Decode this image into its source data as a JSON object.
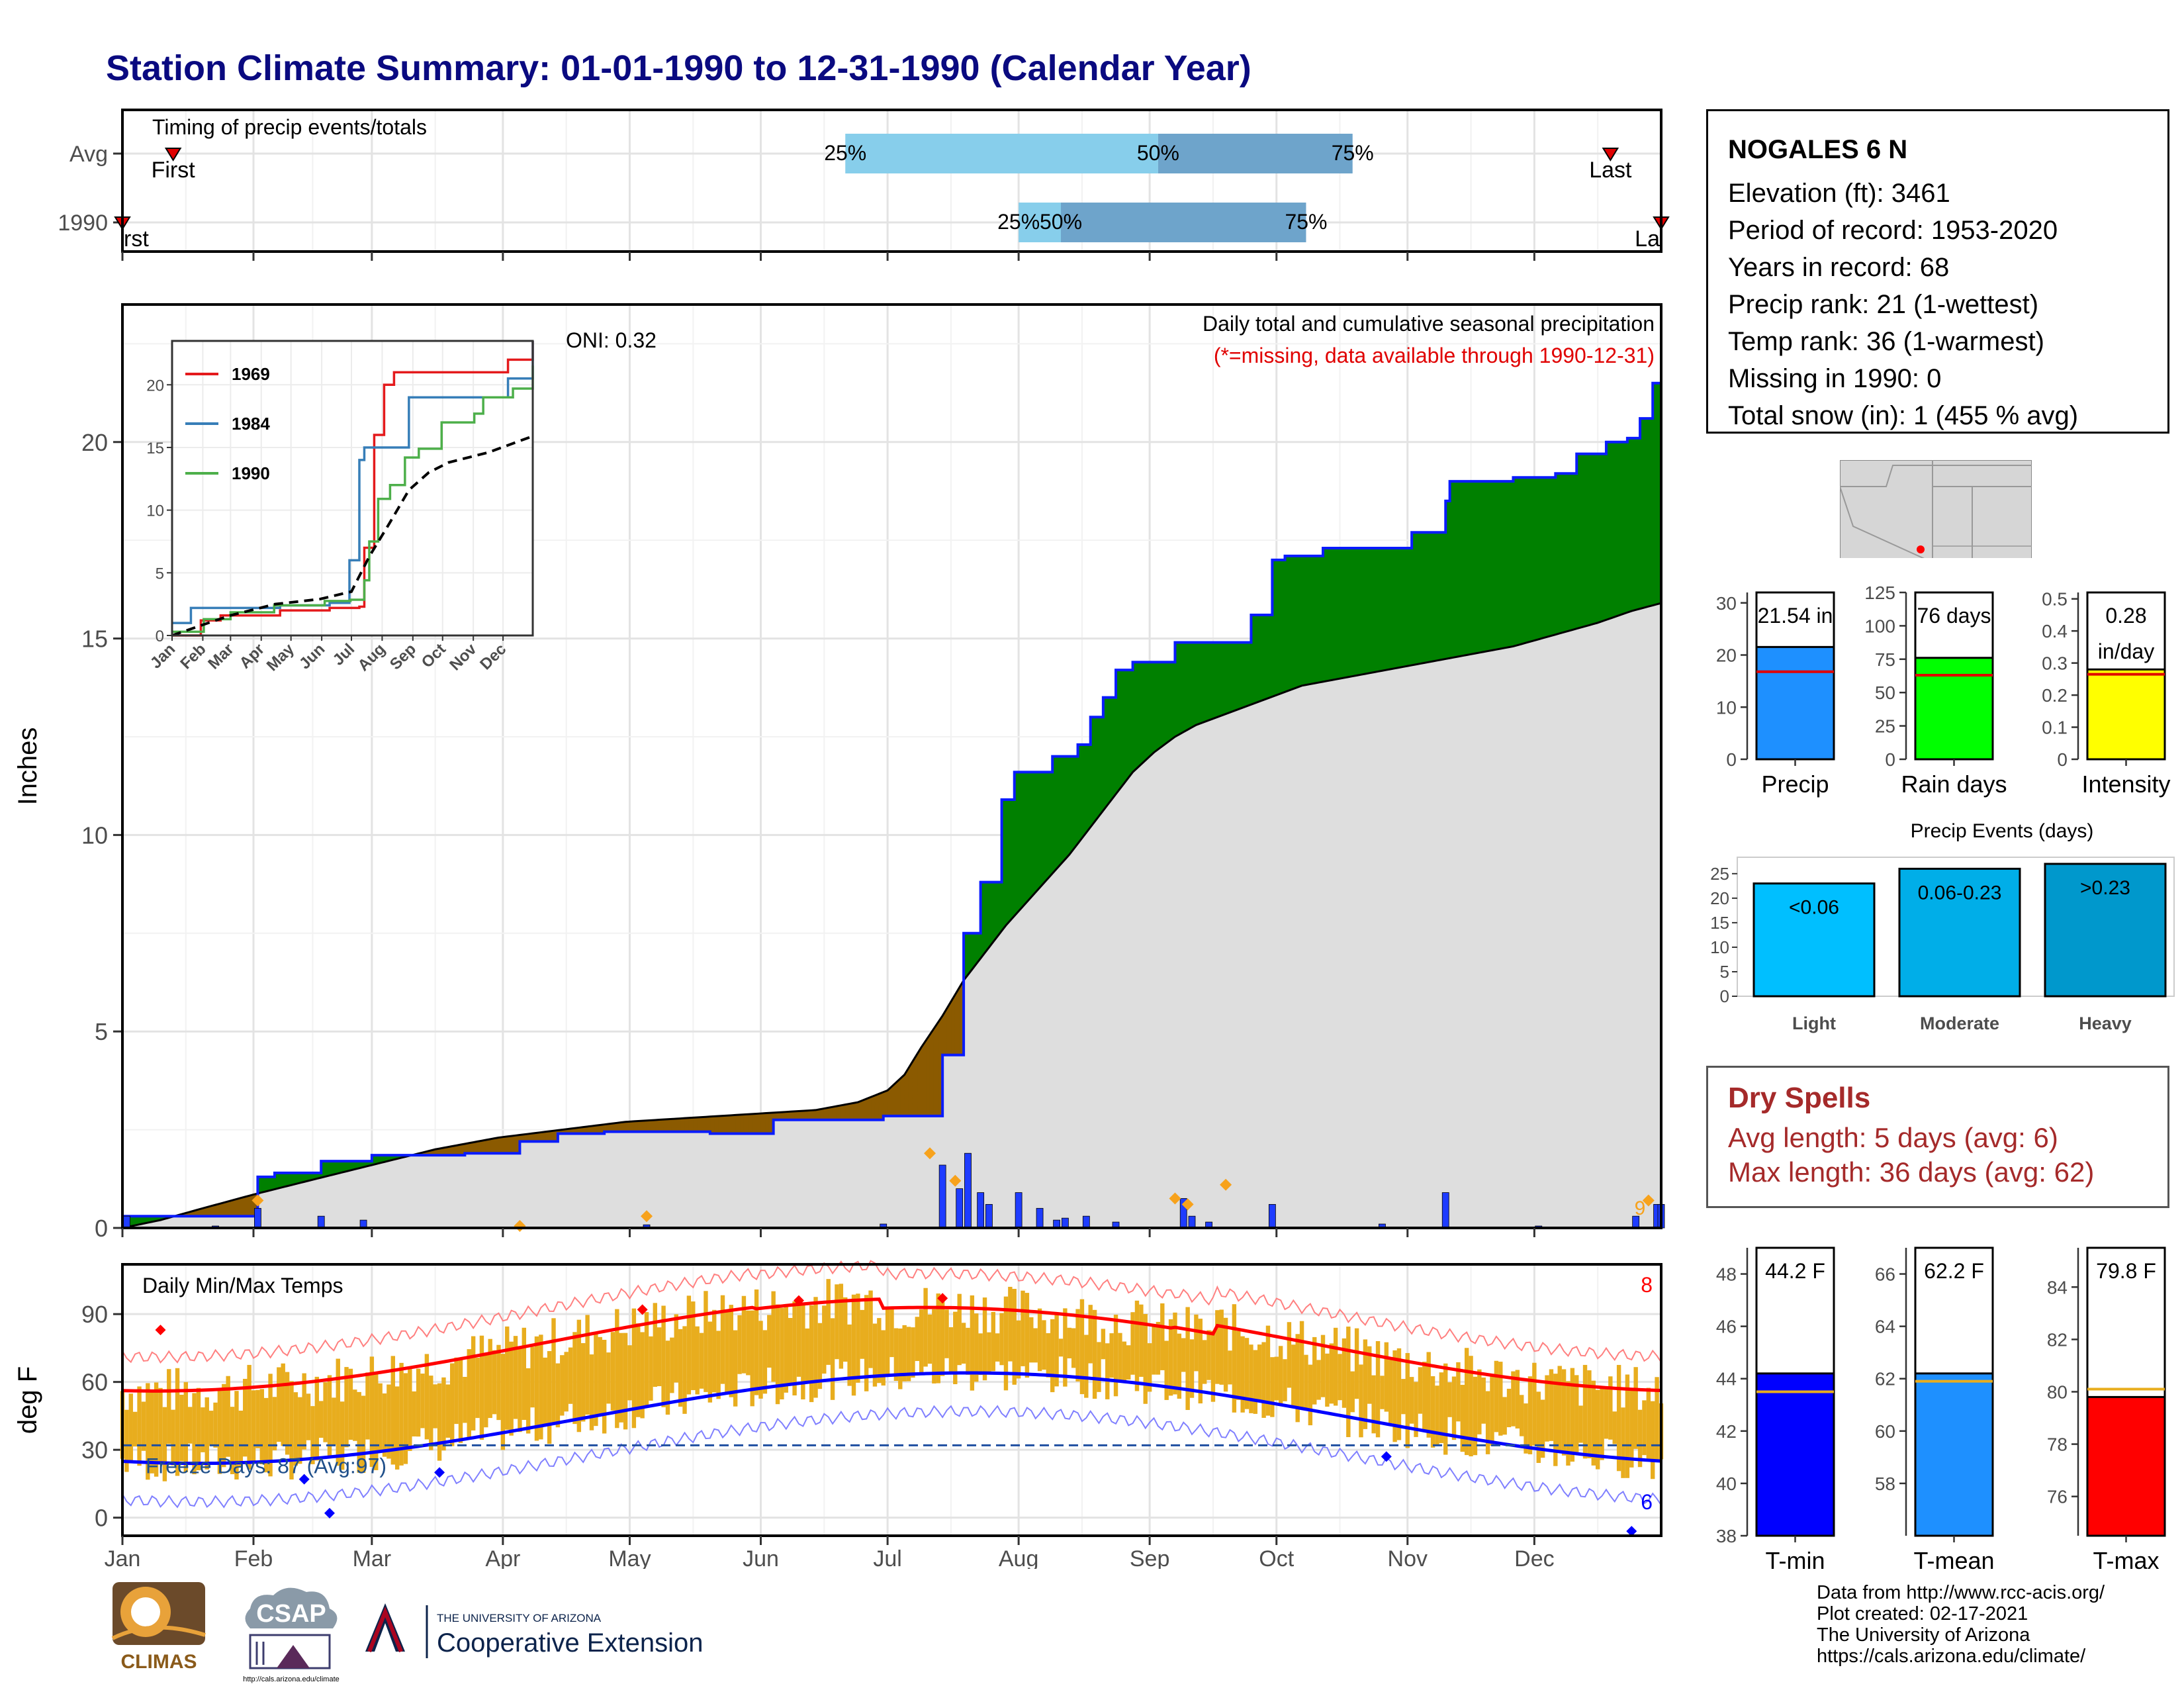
{
  "title": "Station Climate Summary: 01-01-1990 to 12-31-1990 (Calendar Year)",
  "station": {
    "name": "NOGALES 6 N",
    "lines": [
      "Elevation (ft): 3461",
      "Period of record: 1953-2020",
      "Years in record: 68",
      "Precip rank: 21 (1-wettest)",
      "Temp rank: 36 (1-warmest)",
      "Missing in 1990: 0",
      "Total snow (in): 1 (455 % avg)"
    ]
  },
  "months": [
    "Jan",
    "Feb",
    "Mar",
    "Apr",
    "May",
    "Jun",
    "Jul",
    "Aug",
    "Sep",
    "Oct",
    "Nov",
    "Dec"
  ],
  "timing": {
    "label": "Timing of precip events/totals",
    "rows": [
      "Avg",
      "1990"
    ],
    "first_label": "First",
    "last_label": "Last",
    "first_label_cut": "rst",
    "last_label_cut": "La",
    "pct_labels": [
      "25%",
      "50%",
      "75%"
    ],
    "avg": {
      "first": 13,
      "p25": 172,
      "p50": 246,
      "p75": 292,
      "last": 353
    },
    "y1990": {
      "first": 1,
      "p25": 213,
      "p50": 223,
      "p75": 281,
      "last": 365
    }
  },
  "colors": {
    "wet": "#008000",
    "dry": "#8b5a00",
    "avg_fill": "#dedede",
    "precip_bar": "#1e3cff",
    "tmax": "#ff0000",
    "tmin": "#0000ff",
    "temp_bar": "#e8ad1e"
  },
  "chart_data": [
    {
      "type": "area",
      "title": "Daily total and cumulative seasonal precipitation",
      "subtitle": "(*=missing, data available through 1990-12-31)",
      "ylabel": "Inches",
      "ylim": [
        0,
        23.5
      ],
      "yticks": [
        0,
        5,
        10,
        15,
        20
      ],
      "oni_label": "ONI: 0.32",
      "high_marker_count": "9",
      "cum_1990": [
        [
          1,
          0.3
        ],
        [
          32,
          0.3
        ],
        [
          33,
          1.3
        ],
        [
          37,
          1.4
        ],
        [
          48,
          1.7
        ],
        [
          60,
          1.85
        ],
        [
          82,
          1.9
        ],
        [
          95,
          2.2
        ],
        [
          104,
          2.4
        ],
        [
          110,
          2.4
        ],
        [
          115,
          2.45
        ],
        [
          140,
          2.4
        ],
        [
          155,
          2.75
        ],
        [
          181,
          2.85
        ],
        [
          195,
          4.4
        ],
        [
          200,
          7.5
        ],
        [
          204,
          8.8
        ],
        [
          209,
          10.9
        ],
        [
          212,
          11.6
        ],
        [
          221,
          12.0
        ],
        [
          227,
          12.3
        ],
        [
          230,
          13.0
        ],
        [
          233,
          13.5
        ],
        [
          236,
          14.2
        ],
        [
          240,
          14.4
        ],
        [
          250,
          14.9
        ],
        [
          268,
          15.6
        ],
        [
          273,
          17.0
        ],
        [
          276,
          17.1
        ],
        [
          285,
          17.3
        ],
        [
          306,
          17.7
        ],
        [
          314,
          18.5
        ],
        [
          315,
          19.0
        ],
        [
          330,
          19.1
        ],
        [
          340,
          19.2
        ],
        [
          345,
          19.7
        ],
        [
          352,
          20.0
        ],
        [
          357,
          20.1
        ],
        [
          360,
          20.6
        ],
        [
          363,
          21.5
        ],
        [
          365,
          21.54
        ]
      ],
      "cum_avg": [
        [
          1,
          0
        ],
        [
          10,
          0.2
        ],
        [
          20,
          0.5
        ],
        [
          32,
          0.85
        ],
        [
          45,
          1.2
        ],
        [
          60,
          1.6
        ],
        [
          75,
          2.0
        ],
        [
          90,
          2.3
        ],
        [
          105,
          2.5
        ],
        [
          120,
          2.7
        ],
        [
          135,
          2.8
        ],
        [
          150,
          2.9
        ],
        [
          165,
          3.0
        ],
        [
          175,
          3.2
        ],
        [
          182,
          3.5
        ],
        [
          186,
          3.9
        ],
        [
          190,
          4.6
        ],
        [
          195,
          5.4
        ],
        [
          200,
          6.3
        ],
        [
          205,
          7.0
        ],
        [
          210,
          7.7
        ],
        [
          215,
          8.3
        ],
        [
          220,
          8.9
        ],
        [
          225,
          9.5
        ],
        [
          230,
          10.2
        ],
        [
          235,
          10.9
        ],
        [
          240,
          11.6
        ],
        [
          245,
          12.1
        ],
        [
          250,
          12.5
        ],
        [
          255,
          12.8
        ],
        [
          260,
          13.0
        ],
        [
          265,
          13.2
        ],
        [
          270,
          13.4
        ],
        [
          275,
          13.6
        ],
        [
          280,
          13.8
        ],
        [
          290,
          14.0
        ],
        [
          300,
          14.2
        ],
        [
          310,
          14.4
        ],
        [
          320,
          14.6
        ],
        [
          330,
          14.8
        ],
        [
          340,
          15.1
        ],
        [
          350,
          15.4
        ],
        [
          358,
          15.7
        ],
        [
          365,
          15.9
        ]
      ],
      "daily_precip": [
        [
          2,
          0.3
        ],
        [
          23,
          0.05
        ],
        [
          33,
          0.5
        ],
        [
          48,
          0.3
        ],
        [
          58,
          0.2
        ],
        [
          95,
          0.08
        ],
        [
          125,
          0.08
        ],
        [
          181,
          0.1
        ],
        [
          195,
          1.6
        ],
        [
          199,
          1.0
        ],
        [
          201,
          1.9
        ],
        [
          204,
          0.9
        ],
        [
          206,
          0.6
        ],
        [
          213,
          0.9
        ],
        [
          218,
          0.5
        ],
        [
          222,
          0.2
        ],
        [
          224,
          0.25
        ],
        [
          229,
          0.3
        ],
        [
          236,
          0.15
        ],
        [
          252,
          0.75
        ],
        [
          254,
          0.3
        ],
        [
          258,
          0.15
        ],
        [
          273,
          0.6
        ],
        [
          299,
          0.1
        ],
        [
          314,
          0.9
        ],
        [
          336,
          0.05
        ],
        [
          359,
          0.3
        ],
        [
          364,
          0.6
        ],
        [
          365,
          0.6
        ]
      ],
      "high_markers": [
        [
          33,
          0.7
        ],
        [
          95,
          0.05
        ],
        [
          125,
          0.3
        ],
        [
          192,
          1.9
        ],
        [
          198,
          1.2
        ],
        [
          250,
          0.75
        ],
        [
          253,
          0.6
        ],
        [
          262,
          1.1
        ],
        [
          362,
          0.7
        ]
      ]
    },
    {
      "type": "line",
      "legend": [
        "1969",
        "1984",
        "1990"
      ],
      "ylim": [
        0,
        23.5
      ],
      "yticks": [
        0,
        5,
        10,
        15,
        20
      ],
      "series": [
        {
          "name": "1969",
          "color": "#e41a1c",
          "points": [
            [
              1,
              0
            ],
            [
              30,
              1.2
            ],
            [
              50,
              1.6
            ],
            [
              110,
              2
            ],
            [
              160,
              2.2
            ],
            [
              190,
              2.3
            ],
            [
              195,
              7
            ],
            [
              205,
              16
            ],
            [
              215,
              20
            ],
            [
              225,
              21
            ],
            [
              260,
              21
            ],
            [
              300,
              21
            ],
            [
              340,
              22
            ],
            [
              365,
              23.5
            ]
          ]
        },
        {
          "name": "1984",
          "color": "#377eb8",
          "points": [
            [
              1,
              1
            ],
            [
              20,
              2.2
            ],
            [
              50,
              2.2
            ],
            [
              110,
              2.4
            ],
            [
              160,
              2.6
            ],
            [
              180,
              6
            ],
            [
              190,
              14
            ],
            [
              195,
              15
            ],
            [
              225,
              15
            ],
            [
              240,
              19
            ],
            [
              280,
              19
            ],
            [
              340,
              20.5
            ],
            [
              365,
              23.5
            ]
          ]
        },
        {
          "name": "1990",
          "color": "#4daf4a",
          "points": [
            [
              1,
              0.3
            ],
            [
              33,
              1.3
            ],
            [
              60,
              1.85
            ],
            [
              104,
              2.4
            ],
            [
              155,
              2.75
            ],
            [
              181,
              2.85
            ],
            [
              195,
              4.4
            ],
            [
              200,
              7.5
            ],
            [
              209,
              10.9
            ],
            [
              221,
              12.0
            ],
            [
              236,
              14.2
            ],
            [
              250,
              14.9
            ],
            [
              273,
              17.0
            ],
            [
              306,
              17.7
            ],
            [
              315,
              19.0
            ],
            [
              345,
              19.7
            ],
            [
              365,
              21.54
            ]
          ]
        },
        {
          "name": "",
          "color": "#000000",
          "dashed": true,
          "points": [
            [
              1,
              0
            ],
            [
              32,
              0.85
            ],
            [
              60,
              1.6
            ],
            [
              105,
              2.5
            ],
            [
              150,
              2.9
            ],
            [
              182,
              3.5
            ],
            [
              200,
              6.3
            ],
            [
              220,
              8.9
            ],
            [
              240,
              11.6
            ],
            [
              260,
              13.0
            ],
            [
              280,
              13.8
            ],
            [
              320,
              14.6
            ],
            [
              365,
              15.9
            ]
          ]
        }
      ]
    },
    {
      "type": "bar",
      "ylim": [
        0,
        32
      ],
      "yticks": [
        0,
        10,
        20,
        30
      ],
      "categories": [
        "Precip"
      ],
      "values": [
        21.54
      ],
      "avg": 16.8,
      "value_label": "21.54 in",
      "bar_color": "#1e90ff"
    },
    {
      "type": "bar",
      "ylim": [
        0,
        125
      ],
      "yticks": [
        0,
        25,
        50,
        75,
        100,
        125
      ],
      "categories": [
        "Rain days"
      ],
      "values": [
        76
      ],
      "avg": 63,
      "value_label": "76 days",
      "bar_color": "#00ff00"
    },
    {
      "type": "bar",
      "ylim": [
        0,
        0.52
      ],
      "yticks": [
        0.0,
        0.1,
        0.2,
        0.3,
        0.4,
        0.5
      ],
      "categories": [
        "Intensity"
      ],
      "values": [
        0.28
      ],
      "avg": 0.265,
      "value_label": "0.28",
      "value_label_2": "in/day",
      "bar_color": "#ffff00"
    },
    {
      "type": "bar",
      "title": "Precip Events (days)",
      "ylim": [
        0,
        27
      ],
      "yticks": [
        0,
        5,
        10,
        15,
        20,
        25
      ],
      "categories": [
        "Light",
        "Moderate",
        "Heavy"
      ],
      "values": [
        23,
        26,
        27
      ],
      "value_labels": [
        "<0.06",
        "0.06-0.23",
        ">0.23"
      ],
      "colors": [
        "#00bfff",
        "#00aee8",
        "#0098cc"
      ]
    },
    {
      "type": "bar",
      "title": "Daily Min/Max Temps",
      "ylabel": "deg F",
      "ylim": [
        -8,
        112
      ],
      "yticks": [
        0,
        30,
        60,
        90
      ],
      "freeze_label": "Freeze Days: 87 (Avg:97)",
      "freeze_line": 32,
      "record_high_count": "8",
      "record_low_count": "6"
    },
    {
      "type": "bar",
      "ylim": [
        38,
        49
      ],
      "yticks": [
        38,
        40,
        42,
        44,
        46,
        48
      ],
      "categories": [
        "T-min"
      ],
      "values": [
        44.2
      ],
      "avg": 43.5,
      "value_label": "44.2 F",
      "bar_color": "#0000ff"
    },
    {
      "type": "bar",
      "ylim": [
        56,
        67
      ],
      "yticks": [
        58,
        60,
        62,
        64,
        66
      ],
      "categories": [
        "T-mean"
      ],
      "values": [
        62.2
      ],
      "avg": 61.9,
      "value_label": "62.2 F",
      "bar_color": "#1e90ff"
    },
    {
      "type": "bar",
      "ylim": [
        74.5,
        85.5
      ],
      "yticks": [
        76,
        78,
        80,
        82,
        84
      ],
      "categories": [
        "T-max"
      ],
      "values": [
        79.8
      ],
      "avg": 80.1,
      "value_label": "79.8 F",
      "bar_color": "#ff0000"
    }
  ],
  "dry_spells": {
    "title": "Dry Spells",
    "avg": "Avg length: 5 days (avg: 6)",
    "max": "Max length: 36 days (avg: 62)"
  },
  "logos": {
    "climas": "CLIMAS",
    "csap": "CSAP",
    "csap_url": "http://cals.arizona.edu/climate",
    "ua_small": "THE UNIVERSITY OF ARIZONA",
    "ua_big": "Cooperative Extension"
  },
  "credits": [
    "Data from http://www.rcc-acis.org/",
    "Plot created: 02-17-2021",
    "The University of Arizona",
    "https://cals.arizona.edu/climate/"
  ]
}
